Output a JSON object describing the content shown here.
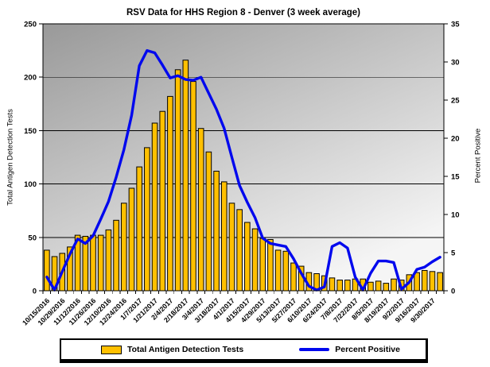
{
  "chart_data": {
    "type": "combo",
    "title": "RSV Data for HHS Region 8 - Denver (3 week average)",
    "x_tick_labels": [
      "10/15/2016",
      "10/29/2016",
      "11/12/2016",
      "11/26/2016",
      "12/10/2016",
      "12/24/2016",
      "1/7/2017",
      "1/21/2017",
      "2/4/2017",
      "2/18/2017",
      "3/4/2017",
      "3/18/2017",
      "4/1/2017",
      "4/15/2017",
      "4/29/2017",
      "5/13/2017",
      "5/27/2017",
      "6/10/2017",
      "6/24/2017",
      "7/8/2017",
      "7/22/2017",
      "8/5/2017",
      "8/19/2017",
      "9/2/2017",
      "9/16/2017",
      "9/30/2017"
    ],
    "x_label_every_n_points": 2,
    "left_axis": {
      "label": "Total Antigen Detection Tests",
      "min": 0,
      "max": 250,
      "step": 50,
      "tick_labels": [
        "0",
        "50",
        "100",
        "150",
        "200",
        "250"
      ],
      "gridlines": true
    },
    "right_axis": {
      "label": "Percent Positive",
      "min": 0,
      "max": 35,
      "step": 5,
      "tick_labels": [
        "0",
        "5",
        "10",
        "15",
        "20",
        "25",
        "30",
        "35"
      ]
    },
    "series": [
      {
        "name": "Total Antigen Detection Tests",
        "type": "bar",
        "axis": "left",
        "values": [
          38,
          32,
          35,
          41,
          52,
          51,
          52,
          52,
          57,
          66,
          82,
          96,
          116,
          134,
          157,
          168,
          182,
          207,
          216,
          196,
          152,
          130,
          112,
          102,
          82,
          76,
          64,
          58,
          49,
          48,
          38,
          37,
          26,
          23,
          17,
          16,
          14,
          12,
          10,
          10,
          11,
          11,
          8,
          9,
          7,
          11,
          10,
          15,
          17,
          19,
          18,
          17
        ]
      },
      {
        "name": "Percent Positive",
        "type": "line",
        "axis": "right",
        "values": [
          1.8,
          0.1,
          2.5,
          4.8,
          6.8,
          6.2,
          7.2,
          9.4,
          11.7,
          14.9,
          18.5,
          23.0,
          29.5,
          31.5,
          31.2,
          29.6,
          27.9,
          28.2,
          27.7,
          27.6,
          28.0,
          25.9,
          23.8,
          21.3,
          17.5,
          13.8,
          11.6,
          9.6,
          6.9,
          6.2,
          6.0,
          5.8,
          4.2,
          2.3,
          0.6,
          0.1,
          0.5,
          5.8,
          6.3,
          5.6,
          1.8,
          0.1,
          2.3,
          3.9,
          3.9,
          3.7,
          0.2,
          1.1,
          2.8,
          3.1,
          3.8,
          4.4
        ]
      }
    ],
    "colors": {
      "bar_fill": "#FFC000",
      "bar_border": "#000000",
      "line": "#0008EE",
      "plot_bg_top_left": "#999999",
      "plot_bg_bottom_right": "#F5F5F5",
      "axis_and_grid": "#000000",
      "text": "#000000"
    }
  },
  "legend": {
    "items": [
      {
        "label": "Total Antigen Detection Tests",
        "swatch": "bar-swatch"
      },
      {
        "label": "Percent Positive",
        "swatch": "line-swatch"
      }
    ]
  }
}
